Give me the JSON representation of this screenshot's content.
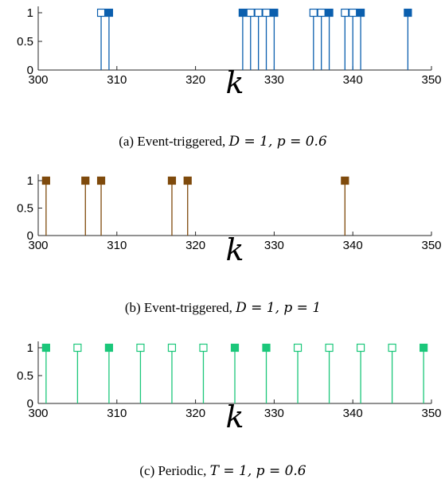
{
  "charts": [
    {
      "caption_prefix": "(a) Event-triggered, ",
      "caption_math": "D = 1, p = 0.6",
      "chart_data": {
        "type": "stem",
        "xlabel": "k",
        "xlim": [
          300,
          350
        ],
        "ylim": [
          0,
          1
        ],
        "xticks": [
          "300",
          "310",
          "320",
          "330",
          "340",
          "350"
        ],
        "yticks": [
          "0",
          "0.5",
          "1"
        ],
        "color": "#0b5fae",
        "filled_x": [
          309,
          326,
          330,
          337,
          341,
          347
        ],
        "hollow_x": [
          308,
          327,
          328,
          329,
          335,
          336,
          339,
          340
        ],
        "y": 1
      }
    },
    {
      "caption_prefix": "(b) Event-triggered, ",
      "caption_math": "D = 1, p = 1",
      "chart_data": {
        "type": "stem",
        "xlabel": "k",
        "xlim": [
          300,
          350
        ],
        "ylim": [
          0,
          1
        ],
        "xticks": [
          "300",
          "310",
          "320",
          "330",
          "340",
          "350"
        ],
        "yticks": [
          "0",
          "0.5",
          "1"
        ],
        "color": "#7f4a0c",
        "filled_x": [
          301,
          306,
          308,
          317,
          319,
          339
        ],
        "hollow_x": [],
        "y": 1
      }
    },
    {
      "caption_prefix": "(c) Periodic, ",
      "caption_math": "T = 1, p = 0.6",
      "chart_data": {
        "type": "stem",
        "xlabel": "k",
        "xlim": [
          300,
          350
        ],
        "ylim": [
          0,
          1
        ],
        "xticks": [
          "300",
          "310",
          "320",
          "330",
          "340",
          "350"
        ],
        "yticks": [
          "0",
          "0.5",
          "1"
        ],
        "color": "#1bc77a",
        "filled_x": [
          301,
          309,
          325,
          329,
          349
        ],
        "hollow_x": [
          305,
          313,
          317,
          321,
          333,
          337,
          341,
          345
        ],
        "y": 1
      }
    }
  ]
}
